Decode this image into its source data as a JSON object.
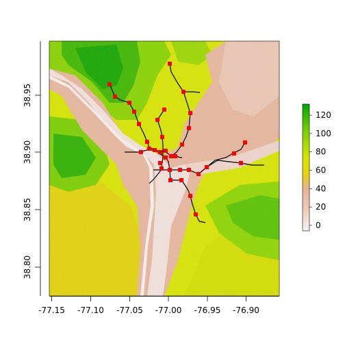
{
  "map": {
    "x_ticks": [
      "-77.15",
      "-77.10",
      "-77.05",
      "-77.00",
      "-76.95",
      "-76.90"
    ],
    "y_ticks": [
      "38.80",
      "38.85",
      "38.90",
      "38.95"
    ],
    "legend": {
      "ticks": [
        "0",
        "20",
        "40",
        "60",
        "80",
        "100",
        "120"
      ],
      "min": -6,
      "max": 132,
      "colors": [
        "#f2f2f2",
        "#eec9b7",
        "#e6b49a",
        "#e8d20a",
        "#d6e500",
        "#7fd000",
        "#00a600"
      ]
    },
    "colors": {
      "station": "#ff0000",
      "line": "#000000"
    },
    "station_count": 36
  }
}
